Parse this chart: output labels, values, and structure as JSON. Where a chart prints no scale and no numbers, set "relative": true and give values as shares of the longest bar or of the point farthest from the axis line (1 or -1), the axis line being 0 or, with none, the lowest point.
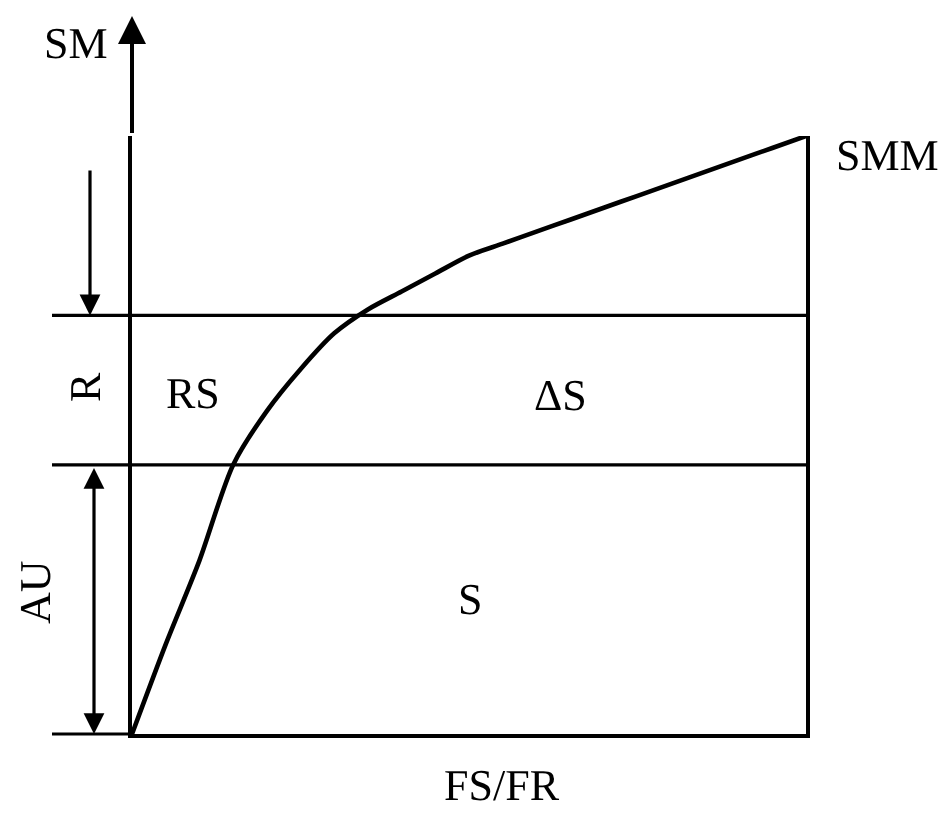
{
  "chart_data": {
    "type": "line",
    "relative": true,
    "xlabel": "FS/FR",
    "ylabel": "SM",
    "categories": [
      null,
      null,
      null,
      null,
      null,
      null,
      null,
      null,
      null,
      null,
      null,
      null,
      null,
      null,
      null,
      null,
      null,
      null,
      null,
      null,
      null
    ],
    "series": [
      {
        "name": "SMM",
        "color": "#000000",
        "values": [
          0,
          0.15,
          0.29,
          0.45,
          0.54,
          0.61,
          0.67,
          0.71,
          0.74,
          0.77,
          0.8,
          0.82,
          0.84,
          0.86,
          0.88,
          0.9,
          0.92,
          0.94,
          0.96,
          0.98,
          1
        ]
      }
    ],
    "ref_lines": [
      {
        "axis": "y",
        "value": 0.7,
        "color": "#000000"
      },
      {
        "axis": "y",
        "value": 0.45,
        "color": "#000000"
      }
    ],
    "annotations": [
      "R",
      "AU",
      "RS",
      "ΔS",
      "S"
    ],
    "marker": "none",
    "line_style": "solid",
    "legend": false
  }
}
